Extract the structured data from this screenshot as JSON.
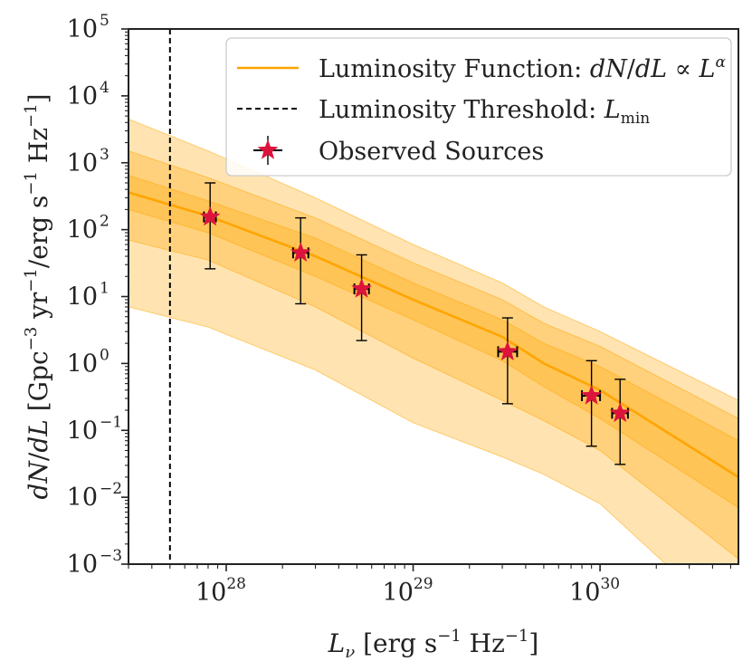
{
  "chart_data": {
    "type": "scatter",
    "title": "",
    "xscale": "log",
    "yscale": "log",
    "xlim": [
      3e+27,
      5.5e+30
    ],
    "ylim": [
      0.001,
      100000
    ],
    "xlabel": {
      "parts": [
        {
          "t": "L",
          "style": "italic"
        },
        {
          "t": "ν",
          "style": "italic",
          "shift": "sub"
        },
        {
          "t": " [erg s"
        },
        {
          "t": "−1",
          "shift": "sup"
        },
        {
          "t": " Hz"
        },
        {
          "t": "−1",
          "shift": "sup"
        },
        {
          "t": "]"
        }
      ]
    },
    "ylabel": {
      "parts": [
        {
          "t": "dN",
          "style": "italic"
        },
        {
          "t": "/"
        },
        {
          "t": "dL",
          "style": "italic"
        },
        {
          "t": " [Gpc"
        },
        {
          "t": "−3",
          "shift": "sup"
        },
        {
          "t": " yr"
        },
        {
          "t": "−1",
          "shift": "sup"
        },
        {
          "t": "/erg s"
        },
        {
          "t": "−1",
          "shift": "sup"
        },
        {
          "t": " Hz"
        },
        {
          "t": "−1",
          "shift": "sup"
        },
        {
          "t": "]"
        }
      ]
    },
    "x_ticks": [
      {
        "value": 1e+28,
        "base": "10",
        "exp": "28"
      },
      {
        "value": 1e+29,
        "base": "10",
        "exp": "29"
      },
      {
        "value": 1e+30,
        "base": "10",
        "exp": "30"
      }
    ],
    "y_ticks": [
      {
        "value": 0.001,
        "base": "10",
        "exp": "−3"
      },
      {
        "value": 0.01,
        "base": "10",
        "exp": "−2"
      },
      {
        "value": 0.1,
        "base": "10",
        "exp": "−1"
      },
      {
        "value": 1,
        "base": "10",
        "exp": "0"
      },
      {
        "value": 10,
        "base": "10",
        "exp": "1"
      },
      {
        "value": 100,
        "base": "10",
        "exp": "2"
      },
      {
        "value": 1000,
        "base": "10",
        "exp": "3"
      },
      {
        "value": 10000,
        "base": "10",
        "exp": "4"
      },
      {
        "value": 100000,
        "base": "10",
        "exp": "5"
      }
    ],
    "luminosity_function": {
      "name": "Luminosity Function",
      "color": "#ffa500",
      "x": [
        3e+27,
        8e+27,
        3e+28,
        1e+29,
        3e+29,
        5e+29,
        1e+30,
        5.5e+30
      ],
      "median": [
        360,
        160,
        40,
        9,
        2.5,
        1.0,
        0.4,
        0.02
      ],
      "band_1sigma": {
        "lower": [
          200,
          90,
          20,
          4.5,
          1.1,
          0.45,
          0.15,
          0.007
        ],
        "upper": [
          650,
          270,
          75,
          16,
          4.5,
          2.0,
          0.9,
          0.07
        ]
      },
      "band_2sigma": {
        "lower": [
          70,
          35,
          7,
          1.2,
          0.28,
          0.14,
          0.05,
          0.0012
        ],
        "upper": [
          1500,
          600,
          150,
          32,
          9,
          4.0,
          1.8,
          0.15
        ]
      },
      "band_3sigma": {
        "lower": [
          7,
          3.5,
          0.8,
          0.13,
          0.04,
          0.022,
          0.008,
          0.0001
        ],
        "upper": [
          4500,
          1500,
          300,
          60,
          16,
          7.0,
          3.0,
          0.28
        ]
      }
    },
    "threshold": {
      "name": "Luminosity Threshold",
      "x": 5e+27
    },
    "observed_sources": {
      "name": "Observed Sources",
      "marker_color": "#dc143c",
      "points": [
        {
          "x": 8.2e+27,
          "y": 155,
          "x_lo": 7.6e+27,
          "x_hi": 8.8e+27,
          "y_lo": 26,
          "y_hi": 500
        },
        {
          "x": 2.5e+28,
          "y": 45,
          "x_lo": 2.28e+28,
          "x_hi": 2.75e+28,
          "y_lo": 7.8,
          "y_hi": 150
        },
        {
          "x": 5.3e+28,
          "y": 13,
          "x_lo": 4.85e+28,
          "x_hi": 5.8e+28,
          "y_lo": 2.2,
          "y_hi": 42
        },
        {
          "x": 3.2e+29,
          "y": 1.5,
          "x_lo": 2.85e+29,
          "x_hi": 3.6e+29,
          "y_lo": 0.25,
          "y_hi": 4.8
        },
        {
          "x": 9e+29,
          "y": 0.33,
          "x_lo": 8e+29,
          "x_hi": 1e+30,
          "y_lo": 0.058,
          "y_hi": 1.1
        },
        {
          "x": 1.28e+30,
          "y": 0.18,
          "x_lo": 1.16e+30,
          "x_hi": 1.41e+30,
          "y_lo": 0.031,
          "y_hi": 0.58
        }
      ]
    },
    "legend": {
      "position": "top-right",
      "entries": [
        {
          "kind": "line",
          "color": "#ffa500",
          "parts": [
            {
              "t": "Luminosity Function: "
            },
            {
              "t": "dN",
              "style": "italic"
            },
            {
              "t": "/"
            },
            {
              "t": "dL",
              "style": "italic"
            },
            {
              "t": " ∝ "
            },
            {
              "t": "L",
              "style": "italic"
            },
            {
              "t": "α",
              "style": "italic",
              "shift": "sup"
            }
          ]
        },
        {
          "kind": "dashed",
          "color": "#000000",
          "parts": [
            {
              "t": "Luminosity Threshold: "
            },
            {
              "t": "L",
              "style": "italic"
            },
            {
              "t": "min",
              "shift": "sub"
            }
          ]
        },
        {
          "kind": "marker",
          "color": "#dc143c",
          "parts": [
            {
              "t": "Observed Sources"
            }
          ]
        }
      ]
    }
  }
}
